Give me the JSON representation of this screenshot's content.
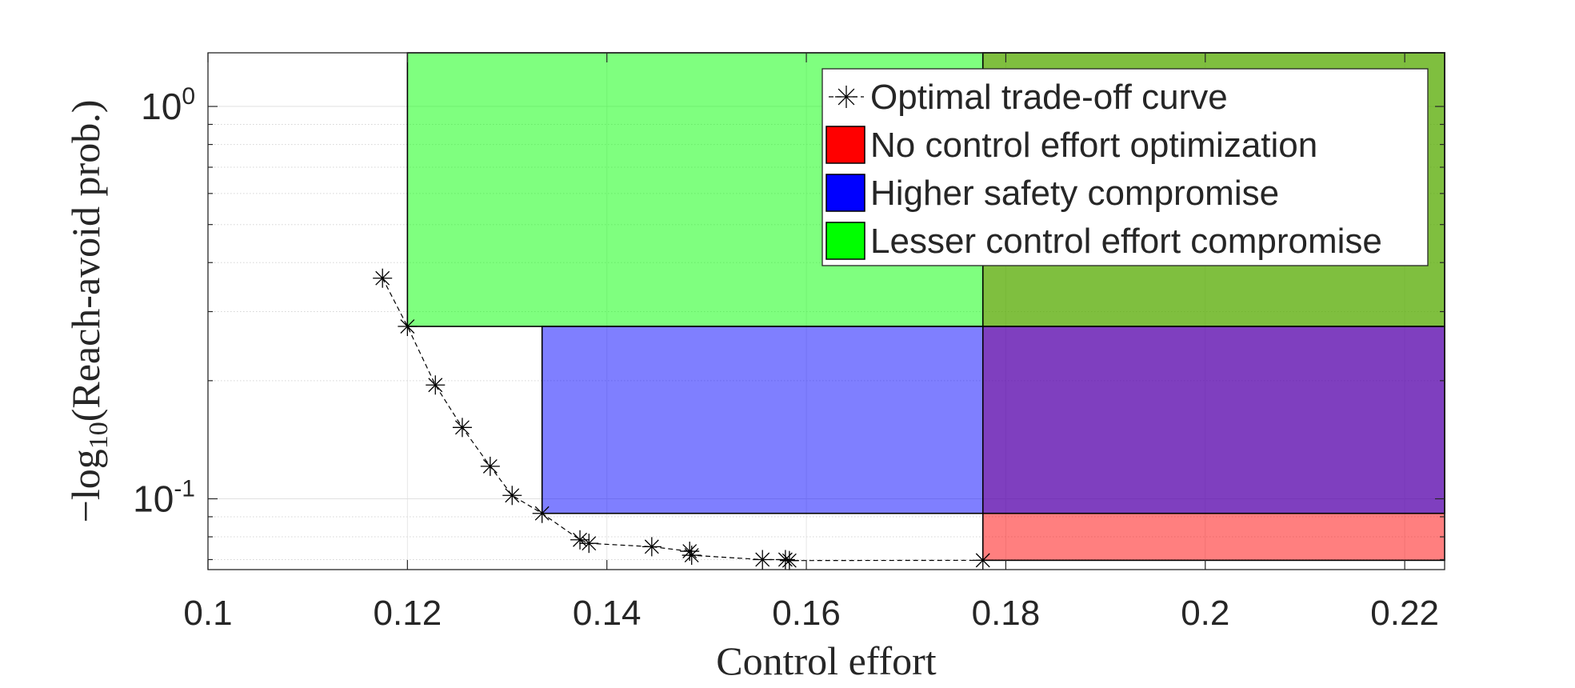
{
  "chart_data": {
    "type": "scatter",
    "xlabel": "Control effort",
    "ylabel": {
      "prefix": "−log",
      "subscript": "10",
      "suffix": "(Reach-avoid prob.)"
    },
    "yscale": "log",
    "xlim": [
      0.1,
      0.224
    ],
    "ylim": [
      0.066,
      1.37
    ],
    "xticks": [
      {
        "value": 0.1,
        "label": "0.1"
      },
      {
        "value": 0.12,
        "label": "0.12"
      },
      {
        "value": 0.14,
        "label": "0.14"
      },
      {
        "value": 0.16,
        "label": "0.16"
      },
      {
        "value": 0.18,
        "label": "0.18"
      },
      {
        "value": 0.2,
        "label": "0.2"
      },
      {
        "value": 0.22,
        "label": "0.22"
      }
    ],
    "yticks": [
      {
        "value": 0.1,
        "base": "10",
        "exp": "-1"
      },
      {
        "value": 1,
        "base": "10",
        "exp": "0"
      }
    ],
    "grid": true,
    "legend_position": "top-right",
    "series": [
      {
        "name": "Optimal trade-off curve",
        "marker": "asterisk",
        "line": "dashed",
        "color": "#000000",
        "points": [
          {
            "x": 0.1175,
            "y": 0.365
          },
          {
            "x": 0.12,
            "y": 0.275
          },
          {
            "x": 0.1228,
            "y": 0.195
          },
          {
            "x": 0.1255,
            "y": 0.152
          },
          {
            "x": 0.1283,
            "y": 0.121
          },
          {
            "x": 0.1305,
            "y": 0.102
          },
          {
            "x": 0.1335,
            "y": 0.0918
          },
          {
            "x": 0.1373,
            "y": 0.0786
          },
          {
            "x": 0.1382,
            "y": 0.077
          },
          {
            "x": 0.1445,
            "y": 0.0755
          },
          {
            "x": 0.1483,
            "y": 0.0735
          },
          {
            "x": 0.1485,
            "y": 0.0718
          },
          {
            "x": 0.1556,
            "y": 0.07
          },
          {
            "x": 0.1579,
            "y": 0.07
          },
          {
            "x": 0.1583,
            "y": 0.0696
          },
          {
            "x": 0.1777,
            "y": 0.0697
          }
        ]
      }
    ],
    "regions": [
      {
        "name": "No control effort optimization",
        "color": "#ff0000",
        "opacity": 0.5,
        "x0": 0.1777,
        "x1": 0.224,
        "y0": 0.0697,
        "y1": 1.37
      },
      {
        "name": "Higher safety compromise",
        "color": "#0000ff",
        "opacity": 0.5,
        "x0": 0.1335,
        "x1": 0.224,
        "y0": 0.0918,
        "y1": 0.275
      },
      {
        "name": "Lesser control effort compromise",
        "color": "#00ff00",
        "opacity": 0.5,
        "x0": 0.12,
        "x1": 0.224,
        "y0": 0.275,
        "y1": 1.37
      }
    ],
    "legend": [
      {
        "label": "Optimal trade-off curve",
        "kind": "marker"
      },
      {
        "label": "No control effort optimization",
        "kind": "patch",
        "color": "#ff0000"
      },
      {
        "label": "Higher safety compromise",
        "kind": "patch",
        "color": "#0000ff"
      },
      {
        "label": "Lesser control effort compromise",
        "kind": "patch",
        "color": "#00ff00"
      }
    ]
  }
}
